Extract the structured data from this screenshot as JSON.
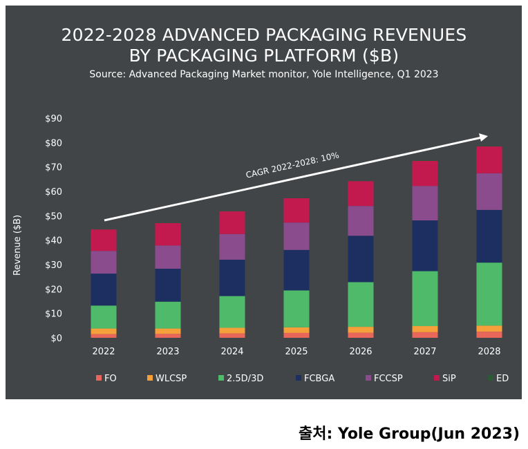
{
  "source_note": "출처: Yole Group(Jun 2023)",
  "chart_data": {
    "type": "bar",
    "stacked": true,
    "title_line1": "2022-2028 ADVANCED PACKAGING REVENUES",
    "title_line2": "BY PACKAGING PLATFORM ($B)",
    "subtitle": "Source: Advanced Packaging Market monitor, Yole Intelligence, Q1 2023",
    "xlabel": "",
    "ylabel": "Revenue ($B)",
    "ylim": [
      0,
      90
    ],
    "yticks": [
      0,
      10,
      20,
      30,
      40,
      50,
      60,
      70,
      80,
      90
    ],
    "ytick_labels": [
      "$0",
      "$10",
      "$20",
      "$30",
      "$40",
      "$50",
      "$60",
      "$70",
      "$80",
      "$90"
    ],
    "categories": [
      "2022",
      "2023",
      "2024",
      "2025",
      "2026",
      "2027",
      "2028"
    ],
    "series": [
      {
        "name": "FO",
        "color": "#e8665a",
        "values": [
          1.5,
          1.6,
          1.8,
          2.0,
          2.1,
          2.3,
          2.5
        ]
      },
      {
        "name": "WLCSP",
        "color": "#f5a03a",
        "values": [
          2.3,
          2.2,
          2.3,
          2.3,
          2.4,
          2.5,
          2.5
        ]
      },
      {
        "name": "2.5D/3D",
        "color": "#4fba6a",
        "values": [
          9.4,
          11.0,
          13.0,
          15.1,
          18.3,
          22.5,
          25.8
        ]
      },
      {
        "name": "FCBGA",
        "color": "#1d2f60",
        "values": [
          13.1,
          13.5,
          14.9,
          16.6,
          19.0,
          20.8,
          21.6
        ]
      },
      {
        "name": "FCCSP",
        "color": "#8a4c8c",
        "values": [
          9.3,
          9.5,
          10.5,
          11.2,
          12.2,
          14.1,
          15.0
        ]
      },
      {
        "name": "SiP",
        "color": "#c21a4f",
        "values": [
          8.8,
          9.2,
          9.3,
          10.0,
          10.2,
          10.3,
          11.0
        ]
      },
      {
        "name": "ED",
        "color": "#2b5a34",
        "values": [
          0.1,
          0.1,
          0.1,
          0.1,
          0.1,
          0.2,
          0.2
        ]
      }
    ],
    "annotation": "CAGR 2022-2028: 10%",
    "legend_position": "bottom",
    "grid": false
  }
}
